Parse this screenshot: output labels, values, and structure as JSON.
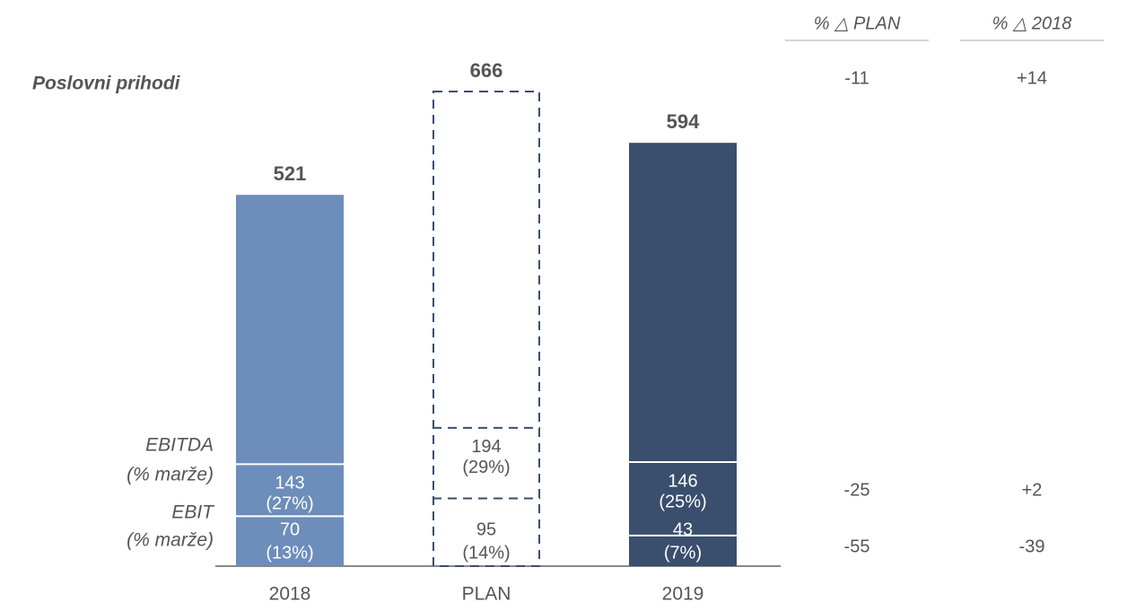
{
  "chart_data": {
    "type": "bar",
    "categories": [
      "2018",
      "PLAN",
      "2019"
    ],
    "bar_colors": [
      "#6d8dbb",
      "none",
      "#3a4e6e"
    ],
    "dashed": [
      false,
      true,
      false
    ],
    "outline_color": "#3a4e6e",
    "series": [
      {
        "name": "Poslovni prihodi",
        "values": [
          521,
          666,
          594
        ]
      },
      {
        "name": "EBITDA",
        "subtitle": "(% marže)",
        "values": [
          143,
          194,
          146
        ],
        "margin_labels": [
          "(27%)",
          "(29%)",
          "(25%)"
        ]
      },
      {
        "name": "EBIT",
        "subtitle": "(% marže)",
        "values": [
          70,
          95,
          43
        ],
        "margin_labels": [
          "(13%)",
          "(14%)",
          "(7%)"
        ]
      }
    ],
    "deltas": [
      {
        "title": "% △ PLAN",
        "values": [
          -11,
          -25,
          -55
        ]
      },
      {
        "title": "% △ 2018",
        "values": [
          14,
          2,
          -39
        ],
        "value_labels": [
          "+14",
          "+2",
          "-39"
        ]
      }
    ]
  }
}
